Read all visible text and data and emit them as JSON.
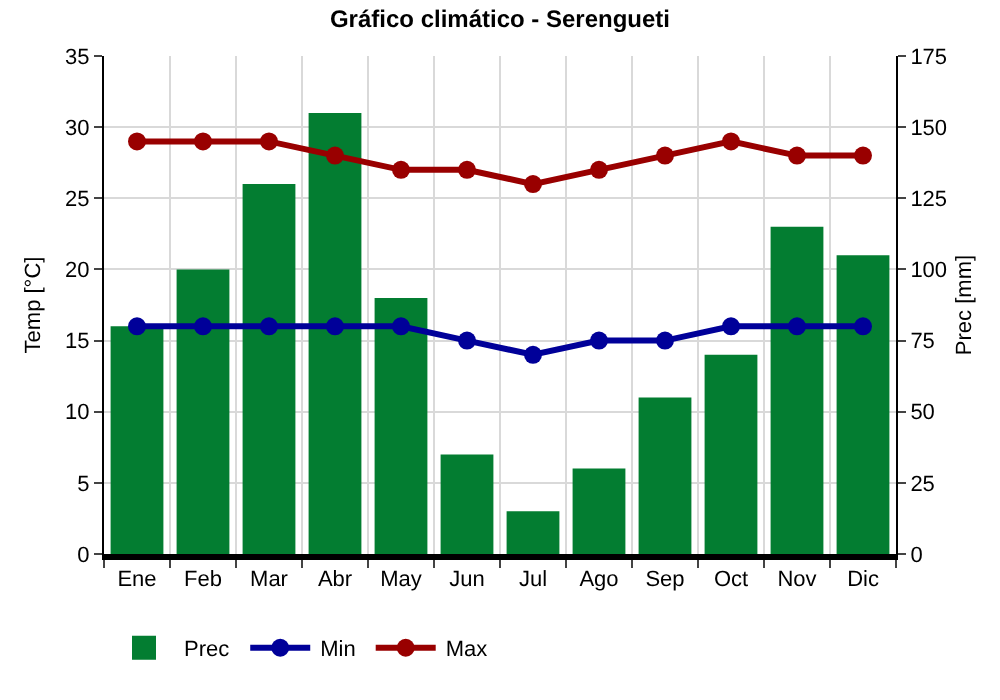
{
  "chart_data": {
    "type": "bar",
    "title": "Gráfico climático - Serengueti",
    "ylabel": "Temp [°C]",
    "y2label": "Prec [mm]",
    "categories": [
      "Ene",
      "Feb",
      "Mar",
      "Abr",
      "May",
      "Jun",
      "Jul",
      "Ago",
      "Sep",
      "Oct",
      "Nov",
      "Dic"
    ],
    "series": [
      {
        "name": "Prec",
        "axis": "y2",
        "color": "#037d31",
        "values": [
          80,
          100,
          130,
          155,
          90,
          35,
          15,
          30,
          55,
          70,
          115,
          105
        ]
      },
      {
        "name": "Min",
        "type": "line",
        "color": "#000099",
        "values": [
          16,
          16,
          16,
          16,
          16,
          15,
          14,
          15,
          15,
          16,
          16,
          16
        ]
      },
      {
        "name": "Max",
        "type": "line",
        "color": "#990000",
        "values": [
          29,
          29,
          29,
          28,
          27,
          27,
          26,
          27,
          28,
          29,
          28,
          28
        ]
      }
    ],
    "ylim": [
      0,
      35
    ],
    "yticks": [
      0,
      5,
      10,
      15,
      20,
      25,
      30,
      35
    ],
    "y2lim": [
      0,
      175
    ],
    "y2ticks": [
      0,
      25,
      50,
      75,
      100,
      125,
      150,
      175
    ],
    "grid": true,
    "legend": "bottom left",
    "marker": "circle",
    "line_style": "solid"
  }
}
